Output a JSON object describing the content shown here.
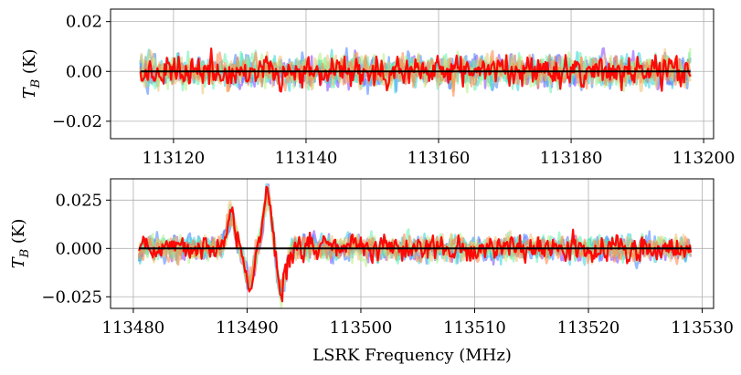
{
  "chart_data": [
    {
      "type": "line",
      "title": "",
      "xlabel": "",
      "ylabel": "T_B (K)",
      "ylabel_main": "T",
      "ylabel_sub": "B",
      "ylabel_unit": " (K)",
      "xlim": [
        113110.5,
        113201.5
      ],
      "ylim": [
        -0.027,
        0.025
      ],
      "x_ticks": [
        113120,
        113140,
        113160,
        113180,
        113200
      ],
      "x_tick_labels": [
        "113120",
        "113140",
        "113160",
        "113180",
        "113200"
      ],
      "y_ticks": [
        -0.02,
        0.0,
        0.02
      ],
      "y_tick_labels": [
        "−0.02",
        "0.00",
        "0.02"
      ],
      "grid": true,
      "x_range": [
        113115,
        113198
      ],
      "noise_amplitude": 0.006,
      "n_series": 8,
      "baseline": 0.0,
      "series_colors": [
        "#7f3fff",
        "#3f7fff",
        "#2fd0e0",
        "#60f0b0",
        "#b0f080",
        "#f0c070",
        "#ff8040",
        "#ff0000"
      ],
      "features": []
    },
    {
      "type": "line",
      "title": "",
      "xlabel": "LSRK Frequency (MHz)",
      "ylabel": "T_B (K)",
      "ylabel_main": "T",
      "ylabel_sub": "B",
      "ylabel_unit": " (K)",
      "xlim": [
        113478,
        113531
      ],
      "ylim": [
        -0.031,
        0.036
      ],
      "x_ticks": [
        113480,
        113490,
        113500,
        113510,
        113520,
        113530
      ],
      "x_tick_labels": [
        "113480",
        "113490",
        "113500",
        "113510",
        "113520",
        "113530"
      ],
      "y_ticks": [
        -0.025,
        0.0,
        0.025
      ],
      "y_tick_labels": [
        "−0.025",
        "0.000",
        "0.025"
      ],
      "grid": true,
      "x_range": [
        113480.5,
        113529
      ],
      "noise_amplitude": 0.006,
      "n_series": 8,
      "baseline": 0.0,
      "series_colors": [
        "#7f3fff",
        "#3f7fff",
        "#2fd0e0",
        "#60f0b0",
        "#b0f080",
        "#f0c070",
        "#ff8040",
        "#ff0000"
      ],
      "features": [
        {
          "x": 113488.6,
          "amplitude": 0.018
        },
        {
          "x": 113490.2,
          "amplitude": -0.018
        },
        {
          "x": 113491.8,
          "amplitude": 0.028
        },
        {
          "x": 113493.0,
          "amplitude": -0.022
        }
      ]
    }
  ]
}
